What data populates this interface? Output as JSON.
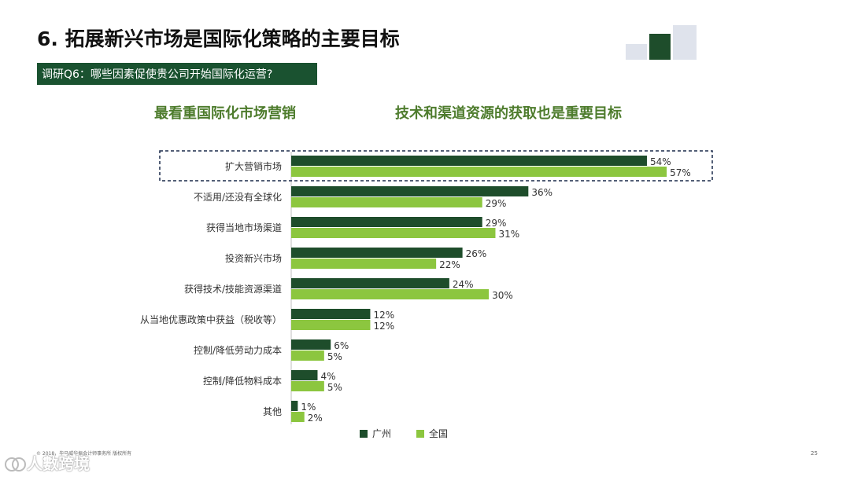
{
  "page": {
    "title": "6. 拓展新兴市场是国际化策略的主要目标",
    "question": "调研Q6：哪些因素促使贵公司开始国际化运营?",
    "subtitle_left": "最看重国际化市场营销",
    "subtitle_right": "技术和渠道资源的获取也是重要目标",
    "footer": "© 2018，毕马威华振会计师事务所 版权所有",
    "page_number": "25",
    "watermark": "人數跨境"
  },
  "colors": {
    "series_guangzhou": "#1e4d2b",
    "series_national": "#8cc63f",
    "banner_bg": "#1a5230",
    "subtitle": "#4e7c2d",
    "highlight_border": "#1a2a4a"
  },
  "chart_data": {
    "type": "bar",
    "orientation": "horizontal",
    "categories": [
      "扩大营销市场",
      "不适用/还没有全球化",
      "获得当地市场渠道",
      "投资新兴市场",
      "获得技术/技能资源渠道",
      "从当地优惠政策中获益（税收等）",
      "控制/降低劳动力成本",
      "控制/降低物料成本",
      "其他"
    ],
    "series": [
      {
        "name": "广州",
        "values": [
          54,
          36,
          29,
          26,
          24,
          12,
          6,
          4,
          1
        ],
        "labels": [
          "54%",
          "36%",
          "29%",
          "26%",
          "24%",
          "12%",
          "6%",
          "4%",
          "1%"
        ]
      },
      {
        "name": "全国",
        "values": [
          57,
          29,
          31,
          22,
          30,
          12,
          5,
          5,
          2
        ],
        "labels": [
          "57%",
          "29%",
          "31%",
          "22%",
          "30%",
          "12%",
          "5%",
          "5%",
          "2%"
        ]
      }
    ],
    "xlim": [
      0,
      60
    ],
    "highlighted_category": "扩大营销市场",
    "legend_position": "bottom-center"
  }
}
